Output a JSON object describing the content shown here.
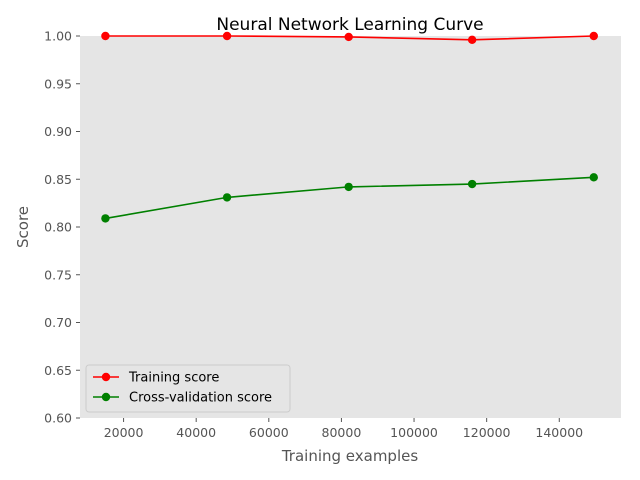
{
  "chart_data": {
    "type": "line",
    "title": "Neural Network Learning Curve",
    "xlabel": "Training examples",
    "ylabel": "Score",
    "x": [
      15000,
      48500,
      82000,
      116000,
      149500
    ],
    "xlim": [
      8000,
      157000
    ],
    "ylim": [
      0.6,
      1.0
    ],
    "xticks": [
      20000,
      40000,
      60000,
      80000,
      100000,
      120000,
      140000
    ],
    "yticks": [
      0.6,
      0.65,
      0.7,
      0.75,
      0.8,
      0.85,
      0.9,
      0.95,
      1.0
    ],
    "grid": false,
    "legend": "bottom-left",
    "series": [
      {
        "name": "Training score",
        "color": "#ff0000",
        "values": [
          1.0,
          1.0,
          0.999,
          0.996,
          1.0
        ]
      },
      {
        "name": "Cross-validation score",
        "color": "#008000",
        "values": [
          0.809,
          0.831,
          0.842,
          0.845,
          0.852
        ]
      }
    ]
  },
  "colors": {
    "plot_bg": "#e5e5e5"
  }
}
